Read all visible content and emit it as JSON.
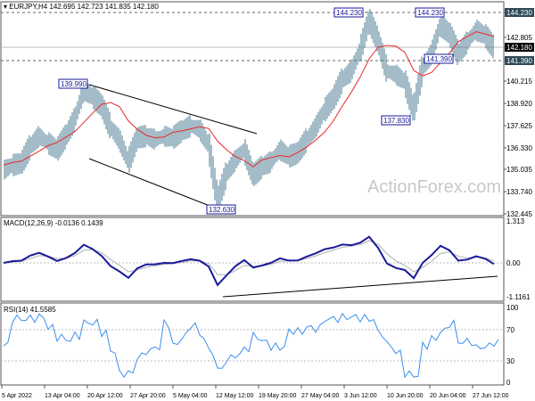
{
  "header": {
    "symbol": "EURJPY,H4",
    "ohlc": "142.695 142.723 141.835 142.180"
  },
  "watermark": "ActionForex.com",
  "colors": {
    "price": "#4a7890",
    "ma": "#e8282a",
    "macd": "#1a1a9a",
    "signal": "#b0b0b0",
    "rsi": "#3c8ff0",
    "tag": "#2e4a56"
  },
  "chart_data": [
    {
      "type": "line",
      "title": "EURJPY,H4",
      "series": [
        {
          "name": "EURJPY close (approx.)",
          "values": [
            135.0,
            135.3,
            135.4,
            136.4,
            137.0,
            136.6,
            136.2,
            137.0,
            138.0,
            139.7,
            139.3,
            138.8,
            137.5,
            136.8,
            135.5,
            136.9,
            137.0,
            136.8,
            137.0,
            136.9,
            137.3,
            137.6,
            137.4,
            136.5,
            133.2,
            134.8,
            135.6,
            136.2,
            134.7,
            135.2,
            135.5,
            136.2,
            135.8,
            136.0,
            136.8,
            137.5,
            138.5,
            139.2,
            140.3,
            140.8,
            142.0,
            143.8,
            142.6,
            140.8,
            140.6,
            140.2,
            138.5,
            141.0,
            141.8,
            143.5,
            143.0,
            141.8,
            142.5,
            143.2,
            142.9,
            142.18
          ]
        }
      ],
      "yticks": [
        "144.230",
        "142.805",
        "142.180",
        "141.390",
        "140.215",
        "138.920",
        "137.625",
        "136.330",
        "135.035",
        "133.740",
        "132.445"
      ],
      "ylim": [
        132.445,
        144.23
      ],
      "xticks": [
        "5 Apr 2022",
        "13 Apr 04:00",
        "20 Apr 12:00",
        "27 Apr 20:00",
        "5 May 04:00",
        "12 May 12:00",
        "19 May 20:00",
        "27 May 04:00",
        "3 Jun 12:00",
        "10 Jun 20:00",
        "20 Jun 04:00",
        "27 Jun 12:00"
      ],
      "annotations": [
        "139.990",
        "132.630",
        "144.230",
        "144.230",
        "141.390",
        "137.830"
      ],
      "hlines": [
        144.23,
        141.39
      ],
      "current_price": "142.180"
    },
    {
      "type": "line",
      "title": "MACD(12,26,9) -0.0136 0.1439",
      "yticks": [
        "1.313",
        "0.00",
        "-1.1161"
      ],
      "ylim": [
        -1.1161,
        1.313
      ]
    },
    {
      "type": "line",
      "title": "RSI(14) 41.5585",
      "yticks": [
        "100",
        "70",
        "30",
        "0"
      ],
      "ylim": [
        0,
        100
      ]
    }
  ]
}
